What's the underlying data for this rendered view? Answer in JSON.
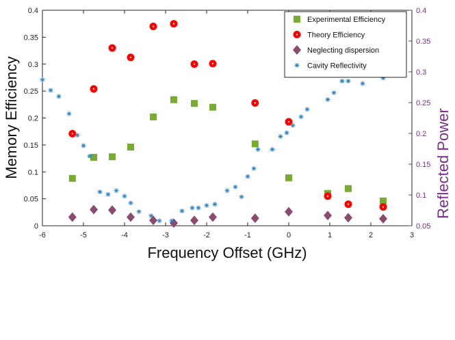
{
  "chart_data": {
    "type": "scatter",
    "title": "",
    "xlabel": "Frequency Offset (GHz)",
    "ylabel": "Memory Efficiency",
    "y2label": "Reflected Power",
    "xlim": [
      -6,
      3
    ],
    "ylim": [
      0,
      0.4
    ],
    "y2lim": [
      0.05,
      0.4
    ],
    "xticks": [
      "-6",
      "-5",
      "-4",
      "-3",
      "-2",
      "-1",
      "0",
      "1",
      "2",
      "3"
    ],
    "xtick_values": [
      -6,
      -5,
      -4,
      -3,
      -2,
      -1,
      0,
      1,
      2,
      3
    ],
    "yticks": [
      "0",
      "0.05",
      "0.1",
      "0.15",
      "0.2",
      "0.25",
      "0.3",
      "0.35",
      "0.4"
    ],
    "ytick_values": [
      0,
      0.05,
      0.1,
      0.15,
      0.2,
      0.25,
      0.3,
      0.35,
      0.4
    ],
    "y2ticks": [
      "0.05",
      "0.1",
      "0.15",
      "0.2",
      "0.25",
      "0.3",
      "0.35",
      "0.4"
    ],
    "y2tick_values": [
      0.05,
      0.1,
      0.15,
      0.2,
      0.25,
      0.3,
      0.35,
      0.4
    ],
    "legend_position": "top-right",
    "colors": {
      "experimental": "#77ac30",
      "theory": "#ff0000",
      "neglecting": "#8b4a6f",
      "cavity": "#2a7fc0",
      "right_axis": "#7b2d8e"
    },
    "series": [
      {
        "name": "Experimental Efficiency",
        "marker": "square",
        "axis": "left",
        "x": [
          -5.27,
          -4.75,
          -4.3,
          -3.85,
          -3.3,
          -2.8,
          -2.3,
          -1.85,
          -0.82,
          0.0,
          0.95,
          1.45,
          2.3
        ],
        "y": [
          0.088,
          0.127,
          0.128,
          0.146,
          0.202,
          0.234,
          0.227,
          0.22,
          0.152,
          0.089,
          0.06,
          0.069,
          0.046
        ]
      },
      {
        "name": "Theory Efficiency",
        "marker": "circle",
        "axis": "left",
        "x": [
          -5.27,
          -4.75,
          -4.3,
          -3.85,
          -3.3,
          -2.8,
          -2.3,
          -1.85,
          -0.82,
          0.0,
          0.95,
          1.45,
          2.3
        ],
        "y": [
          0.171,
          0.254,
          0.33,
          0.3125,
          0.37,
          0.375,
          0.3,
          0.301,
          0.228,
          0.193,
          0.055,
          0.04,
          0.035
        ]
      },
      {
        "name": "Neglecting dispersion",
        "marker": "diamond",
        "axis": "left",
        "x": [
          -5.27,
          -4.75,
          -4.3,
          -3.85,
          -3.3,
          -2.8,
          -2.3,
          -1.85,
          -0.82,
          0.0,
          0.95,
          1.45,
          2.3
        ],
        "y": [
          0.016,
          0.03,
          0.029,
          0.016,
          0.01,
          0.005,
          0.01,
          0.016,
          0.014,
          0.026,
          0.019,
          0.015,
          0.013
        ]
      },
      {
        "name": "Cavity Reflectivity",
        "marker": "asterisk",
        "axis": "right",
        "x": [
          -6.0,
          -5.8,
          -5.6,
          -5.35,
          -5.15,
          -5.0,
          -4.85,
          -4.6,
          -4.4,
          -4.2,
          -4.0,
          -3.85,
          -3.65,
          -3.35,
          -3.15,
          -2.85,
          -2.6,
          -2.35,
          -2.2,
          -2.0,
          -1.8,
          -1.5,
          -1.3,
          -1.15,
          -1.0,
          -0.85,
          -0.75,
          -0.4,
          -0.2,
          -0.05,
          0.1,
          0.3,
          0.45,
          0.95,
          1.1,
          1.3,
          1.45,
          1.6,
          1.8,
          2.3
        ],
        "y": [
          0.287,
          0.27,
          0.26,
          0.232,
          0.197,
          0.18,
          0.163,
          0.105,
          0.101,
          0.107,
          0.098,
          0.087,
          0.073,
          0.066,
          0.058,
          0.058,
          0.074,
          0.079,
          0.079,
          0.083,
          0.085,
          0.107,
          0.113,
          0.097,
          0.13,
          0.143,
          0.174,
          0.174,
          0.195,
          0.201,
          0.213,
          0.227,
          0.239,
          0.255,
          0.266,
          0.285,
          0.285,
          0.311,
          0.281,
          0.29
        ]
      }
    ]
  }
}
